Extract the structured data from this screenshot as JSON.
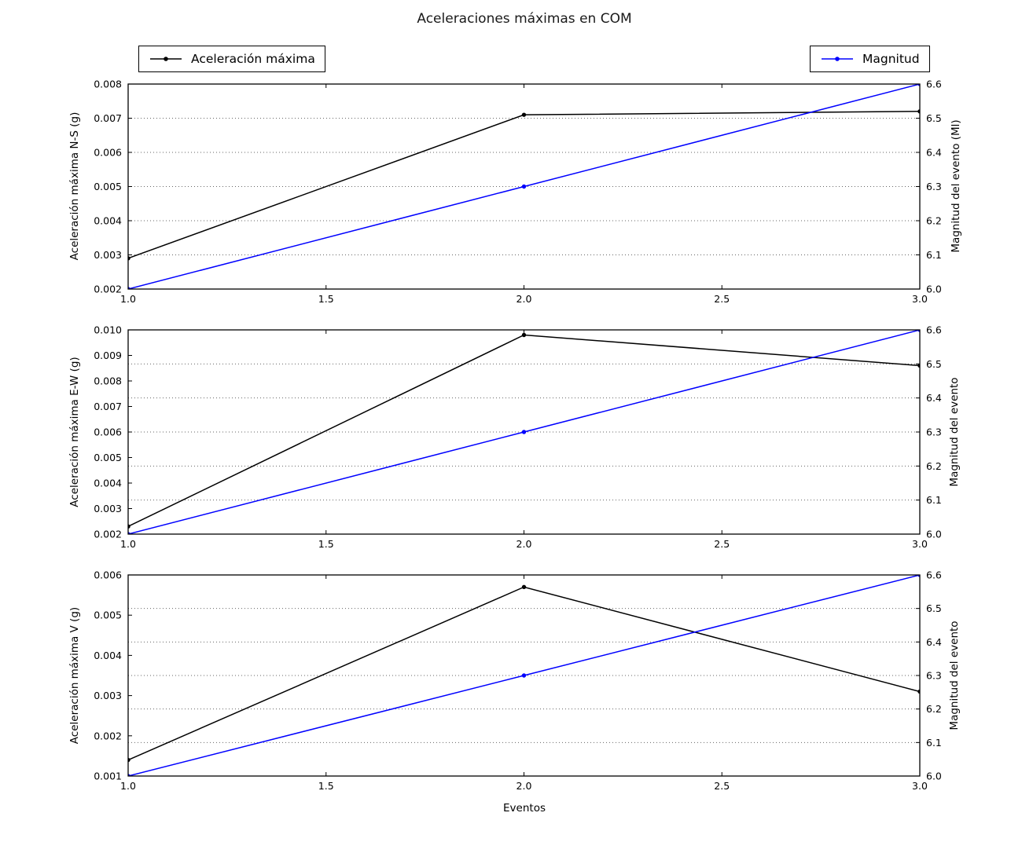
{
  "title": "Aceleraciones máximas en COM",
  "xlabel": "Eventos",
  "legend": {
    "accel_label": "Aceleración máxima",
    "mag_label": "Magnitud",
    "accel_color": "#000000",
    "mag_color": "#0000ff"
  },
  "colors": {
    "accel_line": "#000000",
    "mag_line": "#0000ff",
    "grid": "#666666",
    "background": "#ffffff"
  },
  "x_axis": {
    "lim": [
      1.0,
      3.0
    ],
    "tick_values": [
      1.0,
      1.5,
      2.0,
      2.5,
      3.0
    ],
    "tick_labels": [
      "1.0",
      "1.5",
      "2.0",
      "2.5",
      "3.0"
    ]
  },
  "right_axis": {
    "lim": [
      6.0,
      6.6
    ],
    "tick_values": [
      6.0,
      6.1,
      6.2,
      6.3,
      6.4,
      6.5,
      6.6
    ],
    "tick_labels": [
      "6.0",
      "6.1",
      "6.2",
      "6.3",
      "6.4",
      "6.5",
      "6.6"
    ],
    "grid_values": [
      6.1,
      6.2,
      6.3,
      6.4,
      6.5
    ]
  },
  "chart_data": [
    {
      "type": "line",
      "ylabel_left": "Aceleración máxima N-S (g)",
      "ylabel_right": "Magnitud del evento (Ml)",
      "left_axis": {
        "lim": [
          0.002,
          0.008
        ],
        "tick_values": [
          0.002,
          0.003,
          0.004,
          0.005,
          0.006,
          0.007,
          0.008
        ],
        "tick_labels": [
          "0.002",
          "0.003",
          "0.004",
          "0.005",
          "0.006",
          "0.007",
          "0.008"
        ]
      },
      "x": [
        1,
        2,
        3
      ],
      "series": [
        {
          "name": "Aceleración máxima",
          "axis": "left",
          "color": "#000000",
          "values": [
            0.0029,
            0.0071,
            0.0072
          ]
        },
        {
          "name": "Magnitud",
          "axis": "right",
          "color": "#0000ff",
          "values": [
            6.0,
            6.3,
            6.6
          ]
        }
      ]
    },
    {
      "type": "line",
      "ylabel_left": "Aceleración máxima E-W (g)",
      "ylabel_right": "Magnitud del evento",
      "left_axis": {
        "lim": [
          0.002,
          0.01
        ],
        "tick_values": [
          0.002,
          0.003,
          0.004,
          0.005,
          0.006,
          0.007,
          0.008,
          0.009,
          0.01
        ],
        "tick_labels": [
          "0.002",
          "0.003",
          "0.004",
          "0.005",
          "0.006",
          "0.007",
          "0.008",
          "0.009",
          "0.010"
        ]
      },
      "x": [
        1,
        2,
        3
      ],
      "series": [
        {
          "name": "Aceleración máxima",
          "axis": "left",
          "color": "#000000",
          "values": [
            0.0023,
            0.0098,
            0.0086
          ]
        },
        {
          "name": "Magnitud",
          "axis": "right",
          "color": "#0000ff",
          "values": [
            6.0,
            6.3,
            6.6
          ]
        }
      ]
    },
    {
      "type": "line",
      "ylabel_left": "Aceleración máxima V (g)",
      "ylabel_right": "Magnitud del evento",
      "left_axis": {
        "lim": [
          0.001,
          0.006
        ],
        "tick_values": [
          0.001,
          0.002,
          0.003,
          0.004,
          0.005,
          0.006
        ],
        "tick_labels": [
          "0.001",
          "0.002",
          "0.003",
          "0.004",
          "0.005",
          "0.006"
        ]
      },
      "x": [
        1,
        2,
        3
      ],
      "series": [
        {
          "name": "Aceleración máxima",
          "axis": "left",
          "color": "#000000",
          "values": [
            0.0014,
            0.0057,
            0.0031
          ]
        },
        {
          "name": "Magnitud",
          "axis": "right",
          "color": "#0000ff",
          "values": [
            6.0,
            6.3,
            6.6
          ]
        }
      ]
    }
  ]
}
